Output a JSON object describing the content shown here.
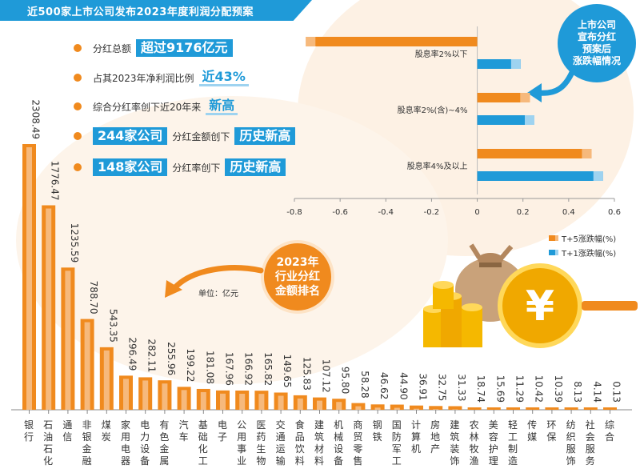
{
  "title": "近500家上市公司发布2023年度利润分配预案",
  "highlights": [
    {
      "label": "分红总额",
      "value": "超过9176亿元"
    },
    {
      "label": "占其2023年净利润比例",
      "value": "近43%"
    },
    {
      "label": "综合分红率创下近20年来",
      "value": "新高"
    },
    {
      "value": "244家公司",
      "label": "分红金额创下",
      "value2": "历史新高"
    },
    {
      "value": "148家公司",
      "label": "分红率创下",
      "value2": "历史新高"
    }
  ],
  "badge_top": "上市公司\n宣布分红\n预案后\n涨跌幅情况",
  "badge_center": "2023年\n行业分红\n金额排名",
  "unit_label": "单位：亿元",
  "colors": {
    "orange": "#f08a1e",
    "light_orange": "#f6b97c",
    "blue": "#1f9ad8",
    "light_blue": "#9ed3f0"
  },
  "icons": [
    "money-bag-icon",
    "coin-stack-icon",
    "yen-magnifier-icon",
    "arrow-icon"
  ],
  "chart_data": [
    {
      "type": "bar",
      "orientation": "horizontal",
      "categories": [
        "股息率2%以下",
        "股息率2%(含)~4%",
        "股息率4%及以上"
      ],
      "series": [
        {
          "name": "T+5涨跌幅(%)",
          "values": [
            -0.75,
            0.23,
            0.5
          ]
        },
        {
          "name": "T+1涨跌幅(%)",
          "values": [
            0.19,
            0.25,
            0.55
          ]
        }
      ],
      "xticks": [
        "-0.8",
        "-0.6",
        "-0.4",
        "-0.2",
        "0",
        "0.2",
        "0.4",
        "0.6"
      ],
      "xlim": [
        -0.8,
        0.6
      ],
      "legend": "bottom-right"
    },
    {
      "type": "bar",
      "categories": [
        "银行",
        "石油石化",
        "通信",
        "非银金融",
        "煤炭",
        "家用电器",
        "电力设备",
        "有色金属",
        "汽车",
        "基础化工",
        "电子",
        "公用事业",
        "医药生物",
        "交通运输",
        "食品饮料",
        "建筑材料",
        "机械设备",
        "商贸零售",
        "钢铁",
        "国防军工",
        "计算机",
        "房地产",
        "建筑装饰",
        "农林牧渔",
        "美容护理",
        "轻工制造",
        "传媒",
        "环保",
        "纺织服饰",
        "社会服务",
        "综合"
      ],
      "labels": [
        "2308.49",
        "1776.47",
        "1235.59",
        "788.70",
        "543.35",
        "296.49",
        "282.11",
        "255.96",
        "199.22",
        "181.08",
        "167.96",
        "166.92",
        "165.82",
        "149.65",
        "125.83",
        "107.12",
        "95.80",
        "58.28",
        "46.62",
        "44.90",
        "36.91",
        "32.75",
        "31.33",
        "18.74",
        "15.69",
        "11.29",
        "10.42",
        "10.39",
        "8.13",
        "4.14",
        "0.13"
      ],
      "values": [
        2308.49,
        1776.47,
        1235.59,
        788.7,
        543.35,
        296.49,
        282.11,
        255.96,
        199.22,
        181.08,
        167.96,
        166.92,
        165.82,
        149.65,
        125.83,
        107.12,
        95.8,
        58.28,
        46.62,
        44.9,
        36.91,
        32.75,
        31.33,
        18.74,
        15.69,
        11.29,
        10.42,
        10.39,
        8.13,
        4.14,
        0.13
      ],
      "ylabel": "单位：亿元"
    }
  ]
}
